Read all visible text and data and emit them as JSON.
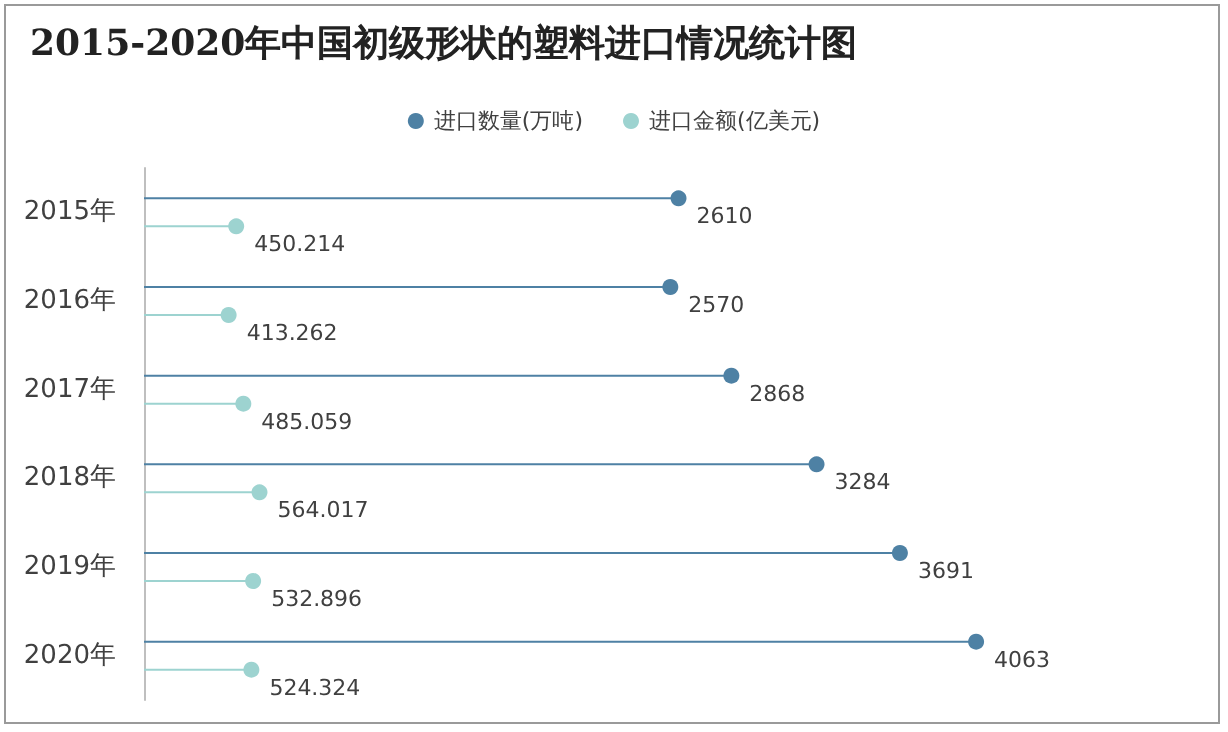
{
  "chart_data": {
    "type": "lollipop",
    "orientation": "horizontal",
    "title": "2015-2020年中国初级形状的塑料进口情况统计图",
    "categories": [
      "2015年",
      "2016年",
      "2017年",
      "2018年",
      "2019年",
      "2020年"
    ],
    "series": [
      {
        "name": "进口数量(万吨)",
        "color": "#4e81a4",
        "values": [
          2610,
          2570,
          2868,
          3284,
          3691,
          4063
        ]
      },
      {
        "name": "进口金额(亿美元)",
        "color": "#9dd3d0",
        "values": [
          450.214,
          413.262,
          485.059,
          564.017,
          532.896,
          524.324
        ]
      }
    ],
    "data_labels": true,
    "legend": "top",
    "marker": "circle"
  }
}
